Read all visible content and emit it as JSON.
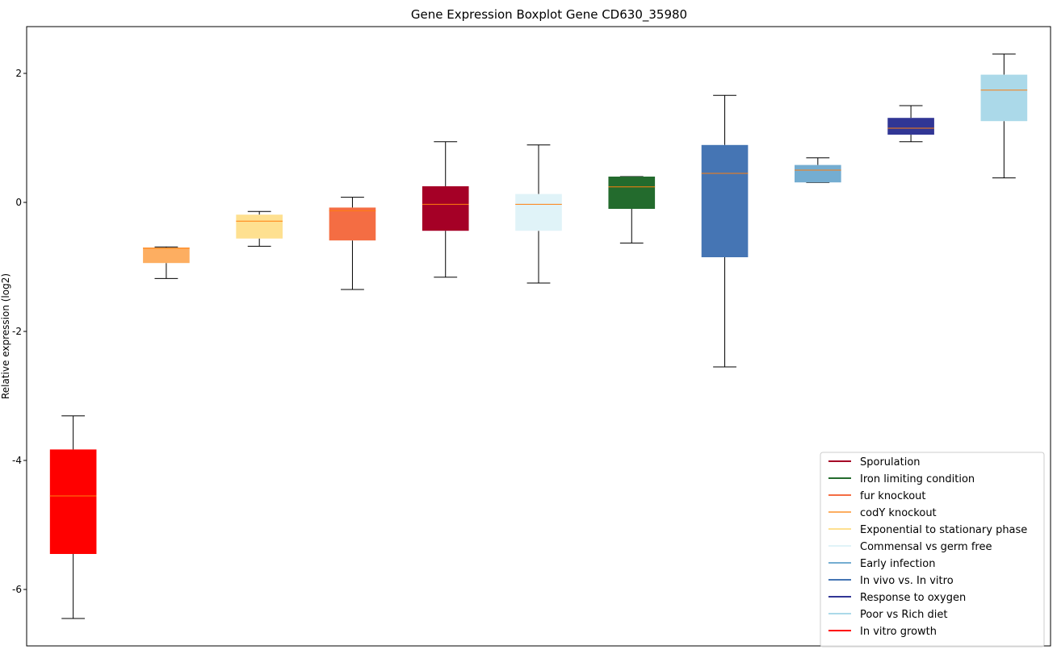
{
  "chart_data": {
    "type": "box",
    "title": "Gene Expression Boxplot Gene CD630_35980",
    "xlabel": "",
    "ylabel": "Relative expression (log2)",
    "ylim": [
      -6.875,
      2.725
    ],
    "yticks": [
      -6,
      -4,
      -2,
      0,
      2
    ],
    "legend_position": "lower-right",
    "median_color": "#ff7f0e",
    "boxes": [
      {
        "name": "In vitro growth",
        "color": "#ff0000",
        "whislo": -6.45,
        "q1": -5.45,
        "med": -4.55,
        "q3": -3.83,
        "whishi": -3.31
      },
      {
        "name": "codY knockout",
        "color": "#fdae61",
        "whislo": -1.18,
        "q1": -0.94,
        "med": -0.71,
        "q3": -0.7,
        "whishi": -0.69
      },
      {
        "name": "Exponential to stationary phase",
        "color": "#fee090",
        "whislo": -0.68,
        "q1": -0.56,
        "med": -0.29,
        "q3": -0.19,
        "whishi": -0.14
      },
      {
        "name": "fur knockout",
        "color": "#f46d43",
        "whislo": -1.35,
        "q1": -0.59,
        "med": -0.13,
        "q3": -0.08,
        "whishi": 0.08
      },
      {
        "name": "Sporulation",
        "color": "#a50026",
        "whislo": -1.16,
        "q1": -0.44,
        "med": -0.03,
        "q3": 0.25,
        "whishi": 0.94
      },
      {
        "name": "Commensal vs germ free",
        "color": "#e0f3f8",
        "whislo": -1.25,
        "q1": -0.44,
        "med": -0.03,
        "q3": 0.13,
        "whishi": 0.89
      },
      {
        "name": "Iron limiting condition",
        "color": "#236b2d",
        "whislo": -0.63,
        "q1": -0.1,
        "med": 0.24,
        "q3": 0.4,
        "whishi": 0.4
      },
      {
        "name": "In vivo vs. In vitro",
        "color": "#4575b4",
        "whislo": -2.55,
        "q1": -0.85,
        "med": 0.45,
        "q3": 0.89,
        "whishi": 1.66
      },
      {
        "name": "Early infection",
        "color": "#74add1",
        "whislo": 0.31,
        "q1": 0.31,
        "med": 0.5,
        "q3": 0.58,
        "whishi": 0.69
      },
      {
        "name": "Response to oxygen",
        "color": "#313695",
        "whislo": 0.94,
        "q1": 1.05,
        "med": 1.15,
        "q3": 1.31,
        "whishi": 1.5
      },
      {
        "name": "Poor vs Rich diet",
        "color": "#abd9e9",
        "whislo": 0.38,
        "q1": 1.26,
        "med": 1.74,
        "q3": 1.98,
        "whishi": 2.3
      }
    ],
    "legend": [
      {
        "label": "Sporulation",
        "color": "#a50026"
      },
      {
        "label": "Iron limiting condition",
        "color": "#236b2d"
      },
      {
        "label": "fur knockout",
        "color": "#f46d43"
      },
      {
        "label": "codY knockout",
        "color": "#fdae61"
      },
      {
        "label": "Exponential to stationary phase",
        "color": "#fee090"
      },
      {
        "label": "Commensal vs germ free",
        "color": "#e0f3f8"
      },
      {
        "label": "Early infection",
        "color": "#74add1"
      },
      {
        "label": "In vivo vs. In vitro",
        "color": "#4575b4"
      },
      {
        "label": "Response to oxygen",
        "color": "#313695"
      },
      {
        "label": "Poor vs Rich diet",
        "color": "#abd9e9"
      },
      {
        "label": "In vitro growth",
        "color": "#ff0000"
      }
    ]
  }
}
